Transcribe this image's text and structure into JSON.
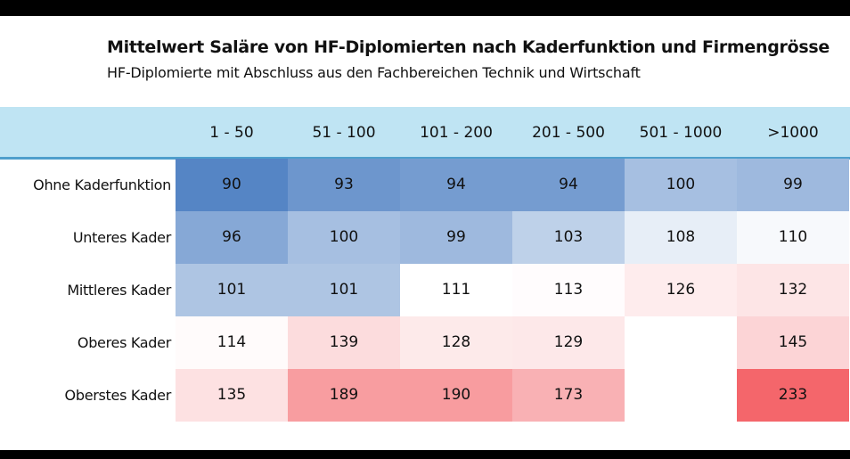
{
  "chart_data": {
    "type": "heatmap",
    "title": "Mittelwert Saläre von HF-Diplomierten nach Kaderfunktion und Firmengrösse",
    "subtitle": "HF-Diplomierte mit Abschluss aus den Fachbereichen Technik und Wirtschaft",
    "columns": [
      "1 - 50",
      "51 - 100",
      "101 - 200",
      "201 - 500",
      "501 - 1000",
      ">1000"
    ],
    "rows": [
      "Ohne Kaderfunktion",
      "Unteres Kader",
      "Mittleres Kader",
      "Oberes Kader",
      "Oberstes Kader"
    ],
    "values": [
      [
        90,
        93,
        94,
        94,
        100,
        99
      ],
      [
        96,
        100,
        99,
        103,
        108,
        110
      ],
      [
        101,
        101,
        111,
        113,
        126,
        132
      ],
      [
        114,
        139,
        128,
        129,
        null,
        145
      ],
      [
        135,
        189,
        190,
        173,
        null,
        233
      ]
    ],
    "color_scale": {
      "low": "#5585c5",
      "mid": "#ffffff",
      "high": "#f4666b"
    },
    "header_color": "#bfe4f3"
  }
}
